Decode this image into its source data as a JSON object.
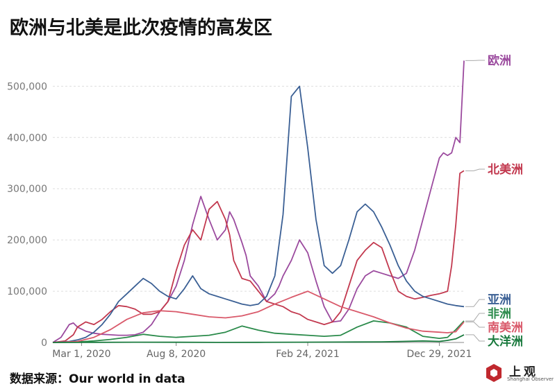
{
  "title": "欧洲与北美是此次疫情的高发区",
  "source": "数据来源：Our world in data",
  "logo": {
    "text": "上观",
    "sub": "Shanghai Observer"
  },
  "chart_data": {
    "type": "line",
    "ylim": [
      0,
      560000
    ],
    "xlim": [
      0,
      100
    ],
    "grid": true,
    "y_ticks": [
      {
        "value": 0,
        "label": "0"
      },
      {
        "value": 100000,
        "label": "100,000"
      },
      {
        "value": 200000,
        "label": "200,000"
      },
      {
        "value": 300000,
        "label": "300,000"
      },
      {
        "value": 400000,
        "label": "400,000"
      },
      {
        "value": 500000,
        "label": "500,000"
      }
    ],
    "x_ticks": [
      {
        "value": 7,
        "label": "Mar 1, 2020"
      },
      {
        "value": 30,
        "label": "Aug 8, 2020"
      },
      {
        "value": 62,
        "label": "Feb 24, 2021"
      },
      {
        "value": 94,
        "label": "Dec 29, 2021"
      }
    ],
    "series": [
      {
        "name": "欧洲",
        "color": "#9b4a9e",
        "x": [
          0,
          2,
          4,
          5,
          6,
          8,
          10,
          12,
          14,
          16,
          18,
          20,
          22,
          24,
          26,
          28,
          30,
          32,
          34,
          36,
          38,
          40,
          42,
          43,
          44,
          46,
          47,
          48,
          50,
          52,
          54,
          55,
          56,
          58,
          60,
          62,
          64,
          66,
          68,
          70,
          72,
          74,
          76,
          78,
          80,
          82,
          84,
          86,
          88,
          90,
          92,
          94,
          95,
          96,
          97,
          98,
          99,
          100
        ],
        "y": [
          0,
          10000,
          35000,
          38000,
          30000,
          22000,
          18000,
          16000,
          15000,
          14000,
          14000,
          15000,
          20000,
          35000,
          60000,
          80000,
          110000,
          160000,
          230000,
          285000,
          240000,
          200000,
          220000,
          255000,
          240000,
          195000,
          170000,
          130000,
          110000,
          80000,
          95000,
          110000,
          130000,
          160000,
          200000,
          175000,
          120000,
          70000,
          40000,
          42000,
          65000,
          105000,
          130000,
          140000,
          135000,
          130000,
          125000,
          135000,
          180000,
          240000,
          300000,
          360000,
          370000,
          365000,
          370000,
          400000,
          390000,
          550000
        ]
      },
      {
        "name": "北美洲",
        "color": "#c2384e",
        "x": [
          0,
          3,
          5,
          6,
          8,
          10,
          12,
          14,
          16,
          18,
          20,
          22,
          24,
          26,
          28,
          30,
          32,
          34,
          36,
          38,
          40,
          42,
          43,
          44,
          46,
          48,
          50,
          52,
          54,
          56,
          58,
          60,
          62,
          64,
          66,
          68,
          70,
          72,
          74,
          76,
          78,
          80,
          82,
          84,
          86,
          88,
          90,
          92,
          94,
          96,
          97,
          98,
          99,
          100
        ],
        "y": [
          0,
          3000,
          15000,
          30000,
          40000,
          35000,
          45000,
          60000,
          72000,
          70000,
          65000,
          55000,
          55000,
          60000,
          80000,
          140000,
          190000,
          220000,
          200000,
          260000,
          275000,
          240000,
          210000,
          160000,
          125000,
          120000,
          100000,
          80000,
          75000,
          70000,
          60000,
          55000,
          45000,
          40000,
          35000,
          40000,
          60000,
          110000,
          160000,
          180000,
          195000,
          185000,
          140000,
          100000,
          90000,
          85000,
          88000,
          92000,
          95000,
          100000,
          150000,
          230000,
          330000,
          335000
        ]
      },
      {
        "name": "亚洲",
        "color": "#3a5f94",
        "x": [
          0,
          2,
          4,
          6,
          8,
          10,
          12,
          14,
          16,
          18,
          20,
          22,
          24,
          26,
          28,
          30,
          32,
          34,
          36,
          38,
          40,
          42,
          44,
          46,
          48,
          50,
          52,
          54,
          56,
          58,
          60,
          62,
          64,
          66,
          68,
          70,
          72,
          74,
          76,
          78,
          80,
          82,
          84,
          86,
          88,
          90,
          92,
          94,
          96,
          98,
          100
        ],
        "y": [
          0,
          1000,
          2000,
          5000,
          10000,
          20000,
          35000,
          55000,
          80000,
          95000,
          110000,
          125000,
          115000,
          100000,
          90000,
          85000,
          105000,
          130000,
          105000,
          95000,
          90000,
          85000,
          80000,
          75000,
          72000,
          75000,
          90000,
          130000,
          250000,
          480000,
          500000,
          380000,
          240000,
          150000,
          135000,
          150000,
          200000,
          255000,
          270000,
          255000,
          225000,
          190000,
          150000,
          120000,
          100000,
          90000,
          85000,
          80000,
          75000,
          72000,
          70000
        ]
      },
      {
        "name": "非洲",
        "color": "#2a8a4a",
        "x": [
          0,
          6,
          10,
          14,
          18,
          22,
          26,
          30,
          34,
          38,
          42,
          46,
          50,
          54,
          58,
          62,
          66,
          70,
          74,
          78,
          82,
          86,
          90,
          94,
          96,
          98,
          100
        ],
        "y": [
          0,
          1000,
          3000,
          6000,
          10000,
          16000,
          12000,
          10000,
          12000,
          14000,
          20000,
          32000,
          24000,
          18000,
          16000,
          14000,
          12000,
          14000,
          30000,
          42000,
          38000,
          30000,
          12000,
          8000,
          10000,
          25000,
          42000
        ]
      },
      {
        "name": "南美洲",
        "color": "#d9596a",
        "x": [
          0,
          6,
          10,
          14,
          18,
          22,
          26,
          30,
          34,
          38,
          42,
          46,
          50,
          54,
          58,
          62,
          66,
          70,
          74,
          78,
          82,
          86,
          90,
          94,
          96,
          98,
          100
        ],
        "y": [
          0,
          2000,
          10000,
          25000,
          45000,
          58000,
          62000,
          60000,
          55000,
          50000,
          48000,
          52000,
          60000,
          75000,
          88000,
          100000,
          85000,
          70000,
          60000,
          50000,
          38000,
          28000,
          22000,
          20000,
          19000,
          21000,
          40000
        ]
      },
      {
        "name": "大洋洲",
        "color": "#1a7a3e",
        "x": [
          0,
          10,
          20,
          30,
          40,
          50,
          60,
          70,
          80,
          85,
          90,
          94,
          96,
          98,
          100
        ],
        "y": [
          0,
          300,
          500,
          400,
          200,
          300,
          600,
          800,
          1200,
          2000,
          3000,
          2000,
          4000,
          7000,
          15000
        ]
      }
    ]
  }
}
